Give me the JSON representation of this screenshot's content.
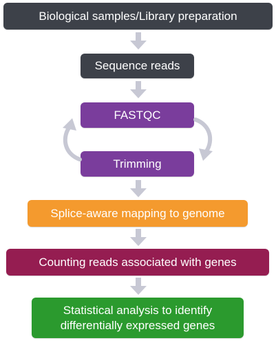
{
  "steps": [
    {
      "label": "Biological samples/Library preparation",
      "color": "#3d4149"
    },
    {
      "label": "Sequence reads",
      "color": "#3d4149"
    },
    {
      "label": "FASTQC",
      "color": "#7a3d9c"
    },
    {
      "label": "Trimming",
      "color": "#7a3d9c"
    },
    {
      "label": "Splice-aware mapping to genome",
      "color": "#f49a2e"
    },
    {
      "label": "Counting reads associated with genes",
      "color": "#951d51"
    },
    {
      "label": "Statistical analysis to identify\ndifferentially expressed genes",
      "color": "#2b9a2e"
    }
  ],
  "connector_color": "#c7c8d4"
}
